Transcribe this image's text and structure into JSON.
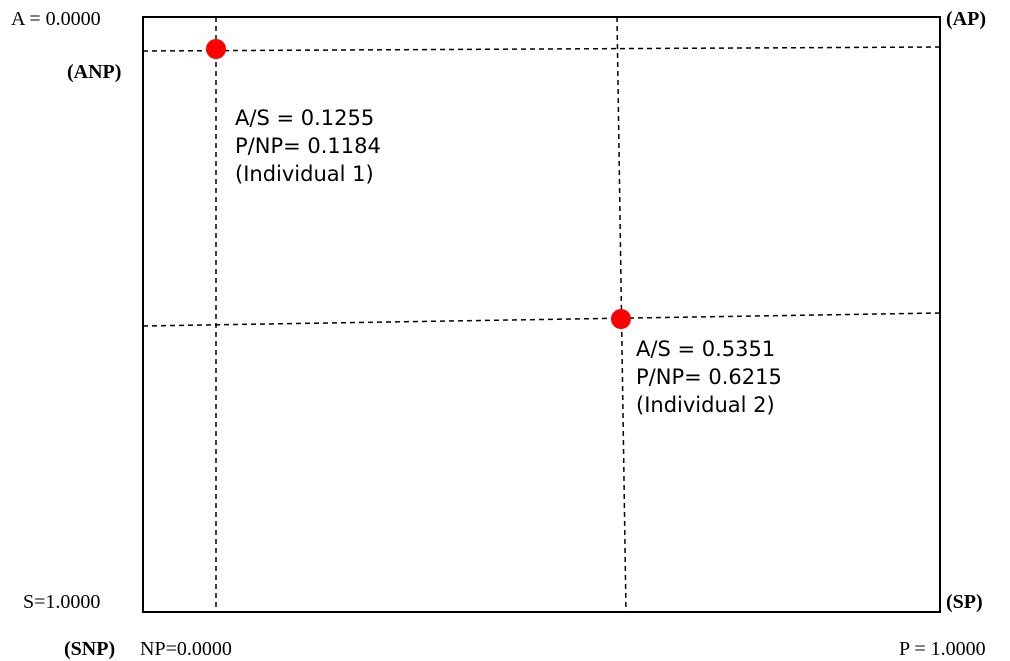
{
  "axis_labels": {
    "top_left": "A = 0.0000",
    "bottom_left": "S=1.0000",
    "bottom_x_left": "NP=0.0000",
    "bottom_x_right": "P = 1.0000"
  },
  "corner_labels": {
    "top_right": "(AP)",
    "top_left_inner": "(ANP)",
    "bottom_right": "(SP)",
    "bottom_left": "(SNP)"
  },
  "individuals": [
    {
      "as_label": "A/S = 0.1255",
      "pnp_label": "P/NP= 0.1184",
      "name_label": "(Individual 1)",
      "as_value": 0.1255,
      "pnp_value": 0.1184
    },
    {
      "as_label": "A/S = 0.5351",
      "pnp_label": "P/NP= 0.6215",
      "name_label": "(Individual 2)",
      "as_value": 0.5351,
      "pnp_value": 0.6215
    }
  ],
  "colors": {
    "point": "#ff0000",
    "line": "#000000"
  }
}
